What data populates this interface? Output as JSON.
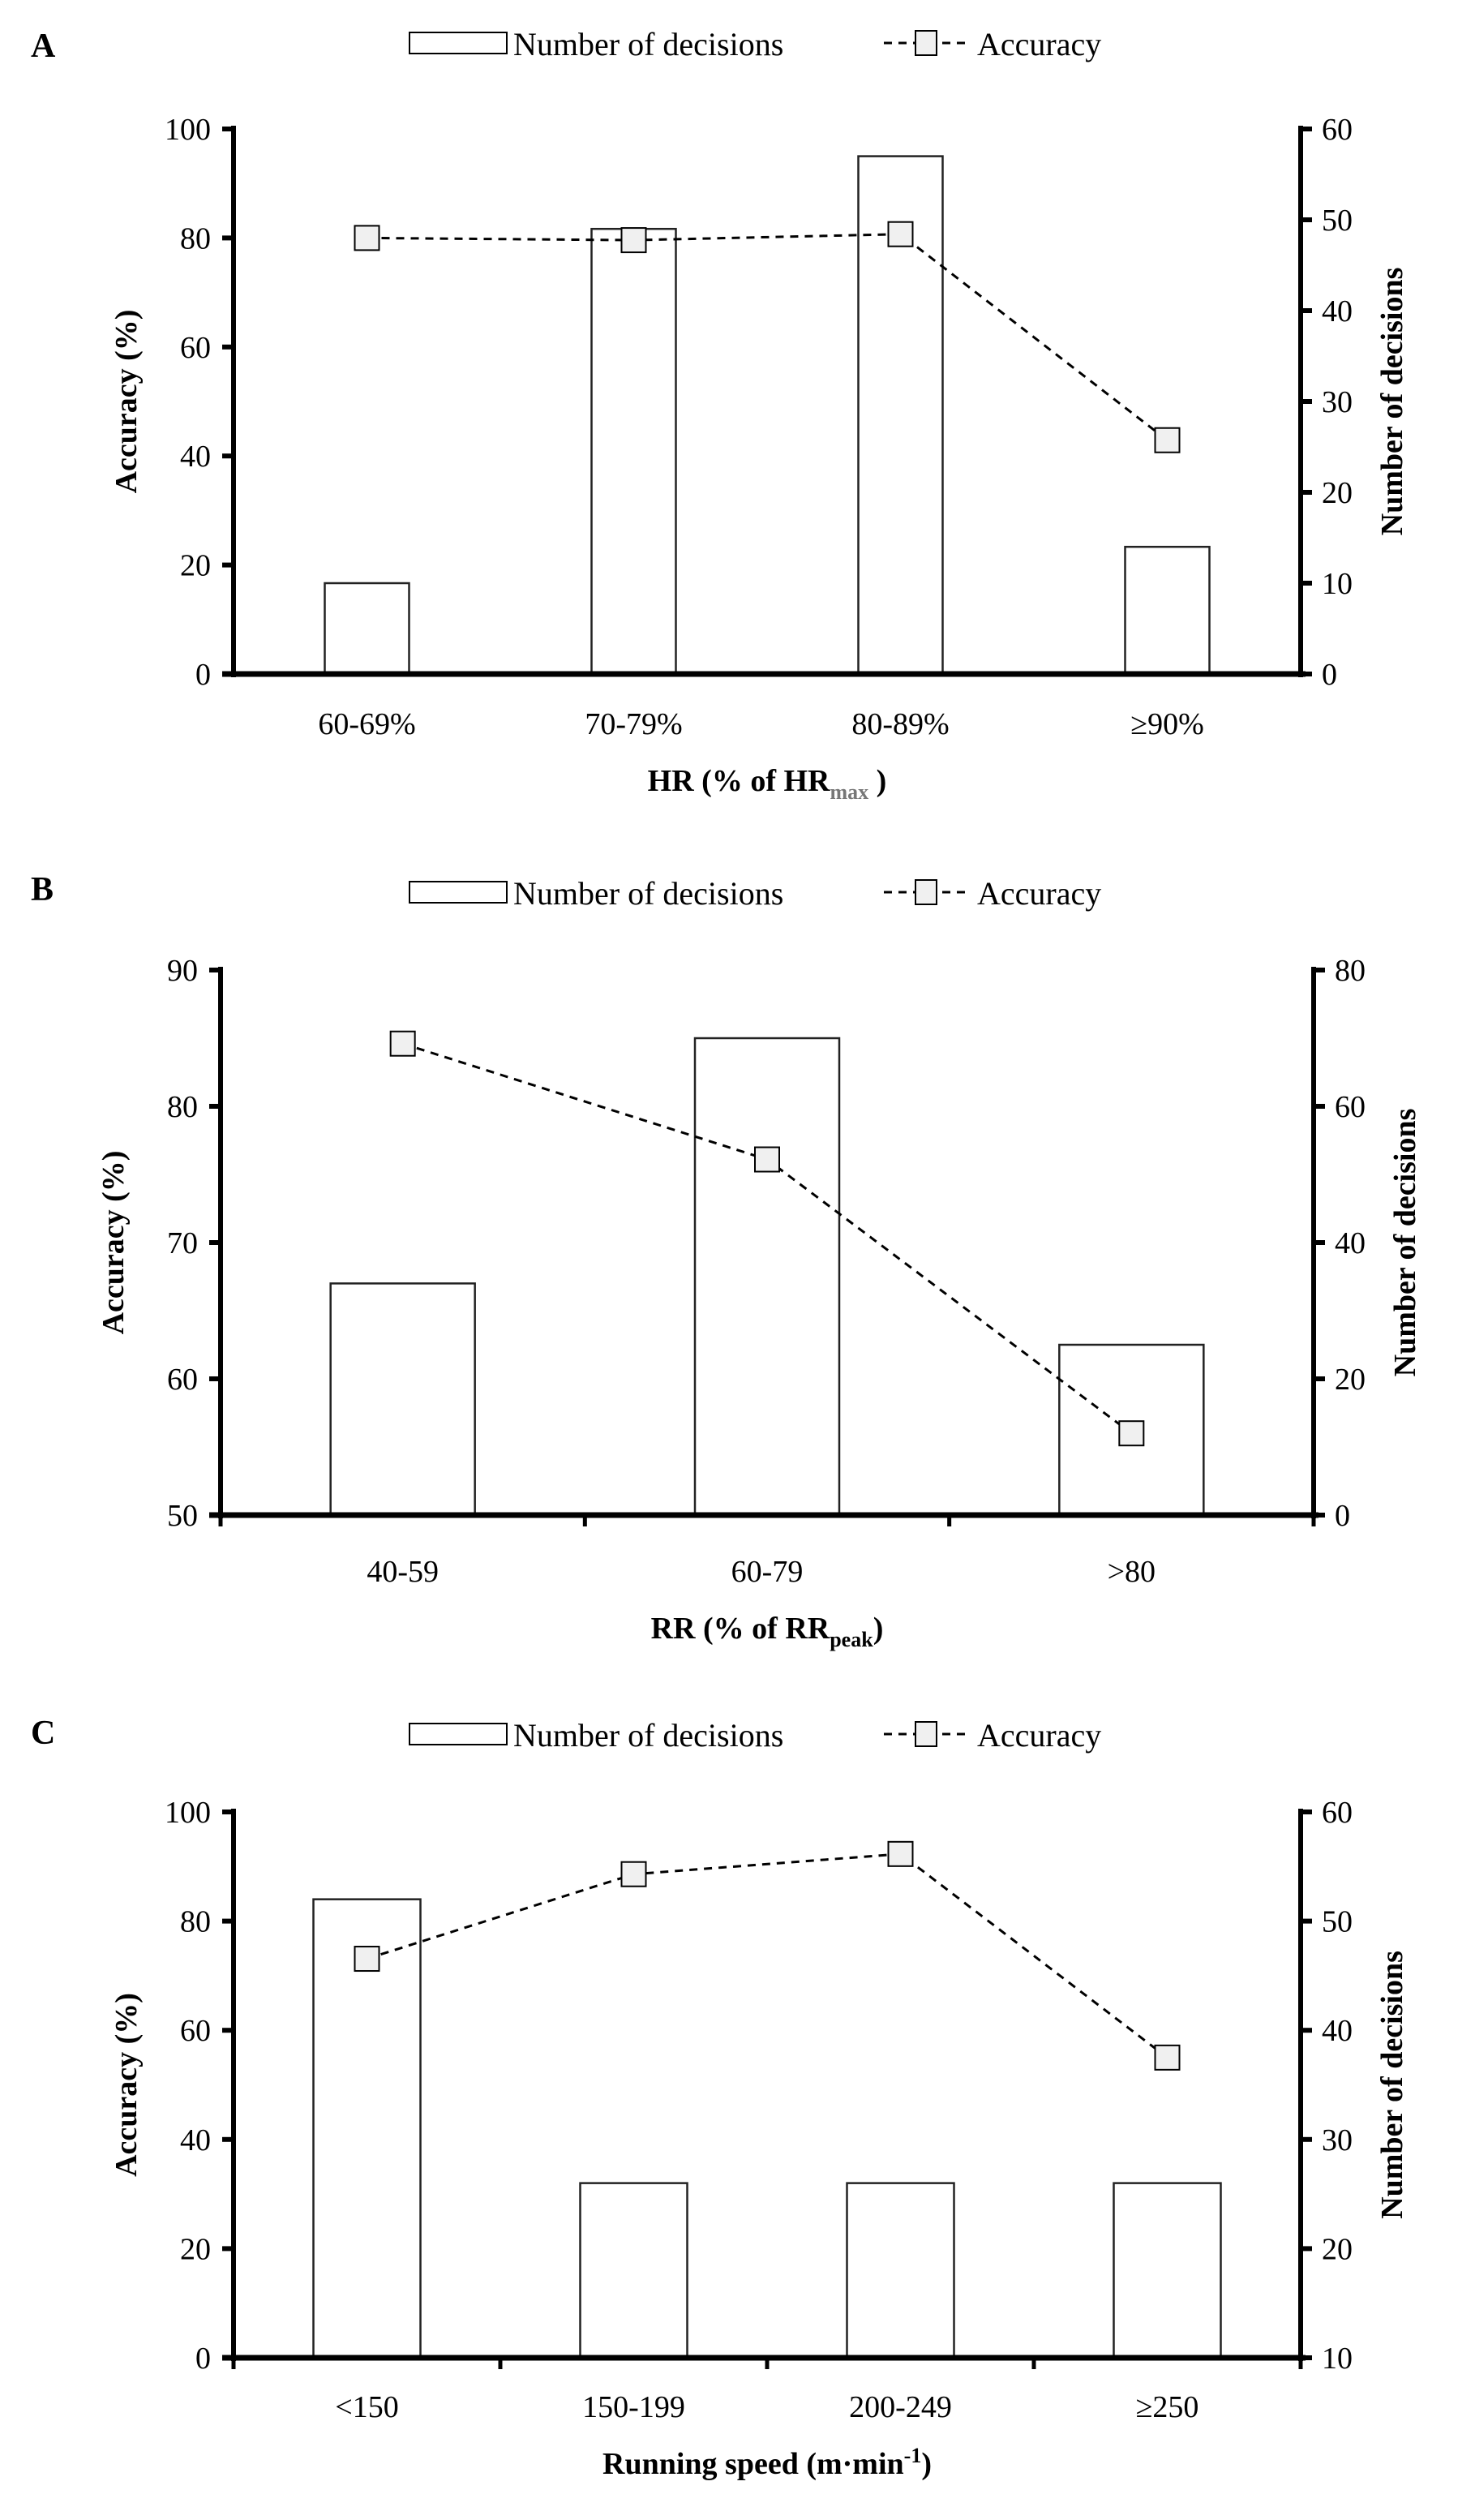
{
  "chart_data": [
    {
      "type": "bar",
      "panel": "A",
      "categories": [
        "60-69%",
        "70-79%",
        "80-89%",
        "≥90%"
      ],
      "series": [
        {
          "name": "Number of decisions",
          "kind": "bar",
          "axis": "right",
          "values": [
            10,
            49,
            57,
            14
          ]
        },
        {
          "name": "Accuracy",
          "kind": "line",
          "axis": "left",
          "values": [
            80,
            79.6,
            80.7,
            42.9
          ]
        }
      ],
      "xlabel": "HR (% of HR",
      "xlabel_sub": "max",
      "xlabel_end": " )",
      "ylabel": "Accuracy (%)",
      "y2label": "Number of decisions",
      "ylim": [
        0,
        100
      ],
      "yticks": [
        0,
        20,
        40,
        60,
        80,
        100
      ],
      "y2lim": [
        0,
        60
      ],
      "y2ticks": [
        0,
        10,
        20,
        30,
        40,
        50,
        60
      ],
      "legend": "top-center",
      "grid": false
    },
    {
      "type": "bar",
      "panel": "B",
      "categories": [
        "40-59",
        "60-79",
        ">80"
      ],
      "series": [
        {
          "name": "Number of decisions",
          "kind": "bar",
          "axis": "right",
          "values": [
            34,
            70,
            25
          ]
        },
        {
          "name": "Accuracy",
          "kind": "line",
          "axis": "left",
          "values": [
            84.6,
            76.1,
            56.0
          ]
        }
      ],
      "xlabel": "RR (% of RR",
      "xlabel_sub": "peak",
      "xlabel_end": ")",
      "ylabel": "Accuracy (%)",
      "y2label": "Number of decisions",
      "ylim": [
        50,
        90
      ],
      "yticks": [
        50,
        60,
        70,
        80,
        90
      ],
      "y2lim": [
        0,
        80
      ],
      "y2ticks": [
        0,
        20,
        40,
        60,
        80
      ],
      "legend": "top-center",
      "grid": false
    },
    {
      "type": "bar",
      "panel": "C",
      "categories": [
        "<150",
        "150-199",
        "200-249",
        "≥250"
      ],
      "series": [
        {
          "name": "Number of decisions",
          "kind": "bar",
          "axis": "right",
          "values": [
            52,
            26,
            26,
            26
          ]
        },
        {
          "name": "Accuracy",
          "kind": "line",
          "axis": "left",
          "values": [
            73.1,
            88.6,
            92.3,
            55
          ]
        }
      ],
      "xlabel": "Running speed (m·min",
      "xlabel_sup": "-1",
      "xlabel_end": ")",
      "ylabel": "Accuracy (%)",
      "y2label": "Number of decisions",
      "ylim": [
        0,
        100
      ],
      "yticks": [
        0,
        20,
        40,
        60,
        80,
        100
      ],
      "y2lim": [
        10,
        60
      ],
      "y2ticks": [
        10,
        20,
        30,
        40,
        50,
        60
      ],
      "legend": "top-center",
      "grid": false
    }
  ],
  "legend": {
    "bar_label": "Number of decisions",
    "line_label": "Accuracy"
  }
}
